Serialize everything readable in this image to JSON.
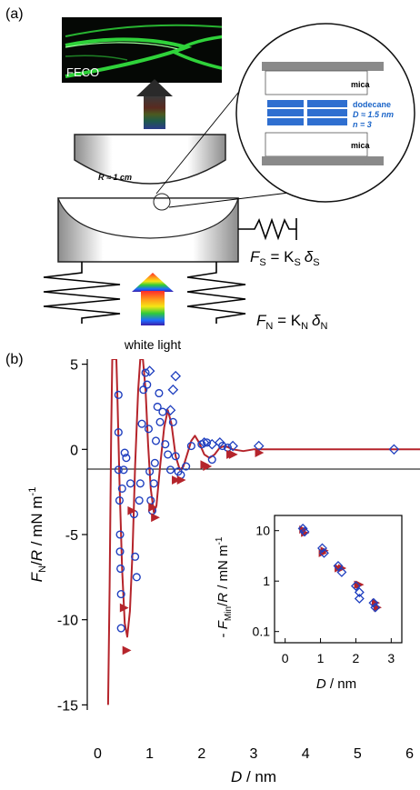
{
  "panel_a": {
    "label": "(a)",
    "feco_label": "FECO",
    "radius_label": "R ≈ 1 cm",
    "white_light_label": "white light",
    "spring_shear": {
      "force": "F",
      "sub": "S",
      "eq": " = K",
      "k_sub": "S",
      "delta": "δ",
      "d_sub": "S"
    },
    "spring_normal": {
      "force": "F",
      "sub": "N",
      "eq": " = K",
      "k_sub": "N",
      "delta": "δ",
      "d_sub": "N"
    },
    "zoom": {
      "silver_top": "silver",
      "mica_top": "mica",
      "liquid": "dodecane",
      "thickness": "D ≈ 1.5 nm",
      "layers": "n = 3",
      "mica_bottom": "mica",
      "silver_bottom": "silver"
    },
    "colors": {
      "liquid": "#1a64c8",
      "silver": "#8a8a8a",
      "fringe": "#2fd23a"
    }
  },
  "panel_b": {
    "label": "(b)",
    "chart_data": [
      {
        "type": "scatter",
        "xlabel": {
          "var": "D",
          "unit": " / nm"
        },
        "ylabel": {
          "var1": "F",
          "sub1": "N",
          "mid": "/",
          "var2": "R",
          "unit": " / mN m",
          "exp": "-1"
        },
        "xlim": [
          -0.2,
          6.2
        ],
        "ylim": [
          -15.3,
          5.3
        ],
        "xticks": [
          0,
          1,
          2,
          3,
          4,
          5,
          6
        ],
        "yticks": [
          5,
          0,
          -5,
          -10,
          -15
        ],
        "series": [
          {
            "marker": "circle",
            "color": "#1f3fbf",
            "points": [
              [
                0.4,
                3.2
              ],
              [
                0.4,
                1.0
              ],
              [
                0.4,
                -1.2
              ],
              [
                0.42,
                -3.0
              ],
              [
                0.43,
                -5.0
              ],
              [
                0.43,
                -6.0
              ],
              [
                0.44,
                -7.0
              ],
              [
                0.45,
                -8.5
              ],
              [
                0.45,
                -10.5
              ],
              [
                0.47,
                -2.3
              ],
              [
                0.5,
                -1.2
              ],
              [
                0.52,
                -0.2
              ],
              [
                0.55,
                -0.5
              ],
              [
                0.63,
                -2.0
              ],
              [
                0.7,
                -3.8
              ],
              [
                0.72,
                -6.3
              ],
              [
                0.75,
                -7.5
              ],
              [
                0.8,
                -3.0
              ],
              [
                0.82,
                -2.0
              ],
              [
                0.85,
                1.5
              ],
              [
                0.88,
                3.5
              ],
              [
                0.92,
                4.5
              ],
              [
                0.95,
                3.8
              ],
              [
                0.98,
                1.2
              ],
              [
                1.0,
                -1.3
              ],
              [
                1.02,
                -3.0
              ],
              [
                1.05,
                -3.6
              ],
              [
                1.08,
                -2.0
              ],
              [
                1.1,
                -0.8
              ],
              [
                1.12,
                0.5
              ],
              [
                1.15,
                2.5
              ],
              [
                1.18,
                3.3
              ],
              [
                1.2,
                1.6
              ],
              [
                1.25,
                2.2
              ],
              [
                1.3,
                0.3
              ],
              [
                1.35,
                -0.3
              ],
              [
                1.4,
                -1.2
              ],
              [
                1.45,
                1.6
              ],
              [
                1.5,
                -0.4
              ],
              [
                1.55,
                -1.3
              ],
              [
                1.6,
                -1.5
              ],
              [
                1.7,
                -1.0
              ],
              [
                1.8,
                0.2
              ],
              [
                2.0,
                0.3
              ],
              [
                2.1,
                0.4
              ],
              [
                2.2,
                -0.6
              ],
              [
                2.4,
                0.2
              ],
              [
                2.5,
                0.1
              ]
            ]
          },
          {
            "marker": "diamond",
            "color": "#1f3fbf",
            "points": [
              [
                1.0,
                4.6
              ],
              [
                1.4,
                2.3
              ],
              [
                1.45,
                3.5
              ],
              [
                1.5,
                4.3
              ],
              [
                2.05,
                0.4
              ],
              [
                2.2,
                0.3
              ],
              [
                2.35,
                0.4
              ],
              [
                2.6,
                0.2
              ],
              [
                3.1,
                0.2
              ],
              [
                5.7,
                0.0
              ]
            ]
          },
          {
            "marker": "triangle",
            "color": "#b5242b",
            "points": [
              [
                0.5,
                -9.3
              ],
              [
                0.55,
                -11.8
              ],
              [
                0.65,
                -3.6
              ],
              [
                1.05,
                -3.4
              ],
              [
                1.1,
                -4.0
              ],
              [
                1.5,
                -1.8
              ],
              [
                1.6,
                -1.8
              ],
              [
                2.05,
                -0.9
              ],
              [
                2.1,
                -1.0
              ],
              [
                2.55,
                -0.3
              ],
              [
                2.6,
                -0.3
              ],
              [
                3.1,
                -0.2
              ]
            ]
          },
          {
            "type": "line",
            "color": "#b5242b",
            "points": [
              [
                0.2,
                -15.0
              ],
              [
                0.23,
                -8.0
              ],
              [
                0.26,
                1.0
              ],
              [
                0.28,
                5.3
              ],
              [
                0.36,
                5.3
              ],
              [
                0.38,
                3.0
              ],
              [
                0.42,
                -2.0
              ],
              [
                0.47,
                -7.0
              ],
              [
                0.52,
                -10.2
              ],
              [
                0.57,
                -11.0
              ],
              [
                0.62,
                -9.5
              ],
              [
                0.67,
                -6.0
              ],
              [
                0.72,
                -1.0
              ],
              [
                0.78,
                3.5
              ],
              [
                0.82,
                5.3
              ],
              [
                0.87,
                5.3
              ],
              [
                0.92,
                3.5
              ],
              [
                0.97,
                0.3
              ],
              [
                1.02,
                -2.3
              ],
              [
                1.08,
                -3.7
              ],
              [
                1.13,
                -3.3
              ],
              [
                1.2,
                -1.0
              ],
              [
                1.28,
                1.3
              ],
              [
                1.35,
                2.3
              ],
              [
                1.42,
                1.5
              ],
              [
                1.5,
                -0.4
              ],
              [
                1.58,
                -1.2
              ],
              [
                1.65,
                -1.0
              ],
              [
                1.73,
                -0.2
              ],
              [
                1.8,
                0.5
              ],
              [
                1.87,
                0.8
              ],
              [
                1.95,
                0.4
              ],
              [
                2.05,
                -0.3
              ],
              [
                2.15,
                -0.5
              ],
              [
                2.25,
                -0.3
              ],
              [
                2.35,
                0.1
              ],
              [
                2.45,
                0.2
              ],
              [
                2.6,
                0.0
              ],
              [
                2.8,
                -0.1
              ],
              [
                3.0,
                0.0
              ],
              [
                3.5,
                0.0
              ],
              [
                6.2,
                0.0
              ]
            ]
          }
        ]
      },
      {
        "type": "scatter",
        "inset": true,
        "xlabel": {
          "var": "D",
          "unit": " / nm"
        },
        "ylabel": {
          "pre": "- ",
          "var1": "F",
          "sub1": "Min",
          "mid": "/",
          "var2": "R",
          "unit": " / mN m",
          "exp": "-1"
        },
        "yscale": "log",
        "xlim": [
          -0.3,
          3.3
        ],
        "ylim": [
          0.06,
          20
        ],
        "xticks": [
          0,
          1,
          2,
          3
        ],
        "yticks": [
          {
            "v": 10,
            "label": "10"
          },
          {
            "v": 1,
            "label": "1"
          },
          {
            "v": 0.1,
            "label": "0.1"
          }
        ],
        "series": [
          {
            "marker": "triangle",
            "color": "#b5242b",
            "points": [
              [
                0.5,
                10.5
              ],
              [
                0.55,
                9.0
              ],
              [
                1.05,
                3.6
              ],
              [
                1.1,
                4.0
              ],
              [
                1.5,
                1.8
              ],
              [
                1.6,
                1.8
              ],
              [
                2.05,
                0.85
              ],
              [
                2.1,
                0.85
              ],
              [
                2.55,
                0.37
              ],
              [
                2.6,
                0.3
              ]
            ]
          },
          {
            "marker": "diamond",
            "color": "#1f3fbf",
            "points": [
              [
                0.5,
                11.0
              ],
              [
                0.55,
                9.5
              ],
              [
                1.05,
                4.5
              ],
              [
                1.1,
                3.6
              ],
              [
                1.5,
                2.0
              ],
              [
                1.6,
                1.5
              ],
              [
                2.0,
                0.8
              ],
              [
                2.1,
                0.6
              ],
              [
                2.1,
                0.45
              ],
              [
                2.5,
                0.37
              ],
              [
                2.55,
                0.3
              ]
            ]
          }
        ]
      }
    ]
  }
}
